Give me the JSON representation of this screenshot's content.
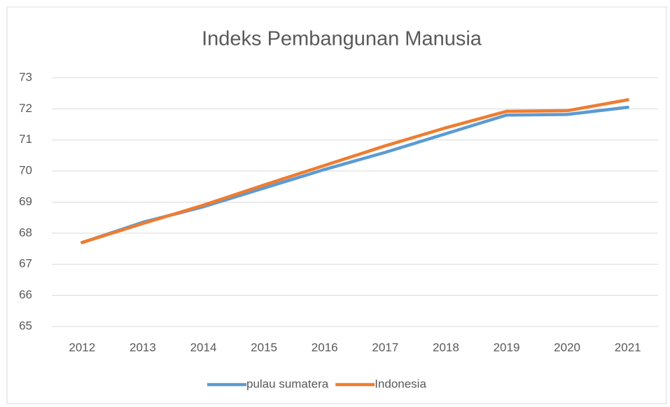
{
  "chart_data": {
    "type": "line",
    "title": "Indeks Pembangunan Manusia",
    "categories": [
      "2012",
      "2013",
      "2014",
      "2015",
      "2016",
      "2017",
      "2018",
      "2019",
      "2020",
      "2021"
    ],
    "series": [
      {
        "name": "pulau sumatera",
        "color": "#5b9bd5",
        "values": [
          67.7,
          68.35,
          68.85,
          69.45,
          70.05,
          70.6,
          71.2,
          71.8,
          71.82,
          72.05
        ]
      },
      {
        "name": "Indonesia",
        "color": "#ed7d31",
        "values": [
          67.7,
          68.31,
          68.9,
          69.55,
          70.18,
          70.81,
          71.39,
          71.92,
          71.94,
          72.29
        ]
      }
    ],
    "ylim": [
      65,
      73
    ],
    "yticks": [
      65,
      66,
      67,
      68,
      69,
      70,
      71,
      72,
      73
    ],
    "grid": true,
    "legend": "bottom"
  }
}
